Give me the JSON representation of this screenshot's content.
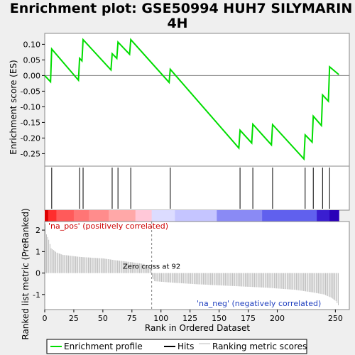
{
  "chart_data": {
    "type": "line",
    "title_line1": "Enrichment plot: GSE50994 HUH7 SILYMARIN",
    "title_line2": "4H",
    "xlabel": "Rank in Ordered Dataset",
    "es_ylabel": "Enrichment score (ES)",
    "metric_ylabel": "Ranked list metric (PreRanked)",
    "xlim": [
      0,
      262
    ],
    "es_ylim": [
      -0.29,
      0.135
    ],
    "metric_ylim": [
      -1.7,
      2.4
    ],
    "x_ticks": [
      0,
      25,
      50,
      75,
      100,
      125,
      150,
      175,
      200,
      250
    ],
    "es_ticks": [
      0.1,
      0.05,
      0.0,
      -0.05,
      -0.1,
      -0.15,
      -0.2,
      -0.25
    ],
    "metric_ticks": [
      2,
      1,
      0,
      -1
    ],
    "n_genes": 253,
    "zero_cross": 92,
    "zero_cross_label": "Zero cross at 92",
    "pos_label": "'na_pos' (positively correlated)",
    "neg_label": "'na_neg' (negatively correlated)",
    "hits": [
      6,
      30,
      33,
      58,
      63,
      74,
      108,
      168,
      179,
      196,
      224,
      231,
      239,
      245
    ],
    "enrichment_profile": [
      [
        0,
        0.0
      ],
      [
        5,
        -0.02
      ],
      [
        6,
        0.085
      ],
      [
        29,
        -0.015
      ],
      [
        30,
        0.055
      ],
      [
        32,
        0.047
      ],
      [
        33,
        0.115
      ],
      [
        57,
        0.018
      ],
      [
        58,
        0.07
      ],
      [
        62,
        0.055
      ],
      [
        63,
        0.107
      ],
      [
        73,
        0.068
      ],
      [
        74,
        0.115
      ],
      [
        107,
        -0.022
      ],
      [
        108,
        0.02
      ],
      [
        167,
        -0.232
      ],
      [
        168,
        -0.175
      ],
      [
        178,
        -0.216
      ],
      [
        179,
        -0.156
      ],
      [
        195,
        -0.222
      ],
      [
        196,
        -0.157
      ],
      [
        223,
        -0.267
      ],
      [
        224,
        -0.19
      ],
      [
        230,
        -0.213
      ],
      [
        231,
        -0.13
      ],
      [
        238,
        -0.16
      ],
      [
        239,
        -0.062
      ],
      [
        244,
        -0.082
      ],
      [
        245,
        0.028
      ],
      [
        253,
        0.003
      ]
    ],
    "metric_profile": [
      [
        0,
        2.3
      ],
      [
        1,
        1.8
      ],
      [
        3,
        1.55
      ],
      [
        5,
        1.15
      ],
      [
        10,
        0.95
      ],
      [
        15,
        0.85
      ],
      [
        30,
        0.75
      ],
      [
        50,
        0.68
      ],
      [
        60,
        0.6
      ],
      [
        75,
        0.5
      ],
      [
        85,
        0.42
      ],
      [
        91,
        0.2
      ],
      [
        92,
        -0.2
      ],
      [
        94,
        -0.38
      ],
      [
        110,
        -0.45
      ],
      [
        130,
        -0.52
      ],
      [
        160,
        -0.6
      ],
      [
        190,
        -0.68
      ],
      [
        215,
        -0.78
      ],
      [
        230,
        -0.9
      ],
      [
        240,
        -1.0
      ],
      [
        246,
        -1.15
      ],
      [
        250,
        -1.3
      ],
      [
        253,
        -1.6
      ]
    ],
    "legend": [
      {
        "label": "Enrichment profile",
        "color": "#00dd00"
      },
      {
        "label": "Hits",
        "color": "#000000"
      },
      {
        "label": "Ranking metric scores",
        "color": "#bbbbbb"
      }
    ]
  }
}
